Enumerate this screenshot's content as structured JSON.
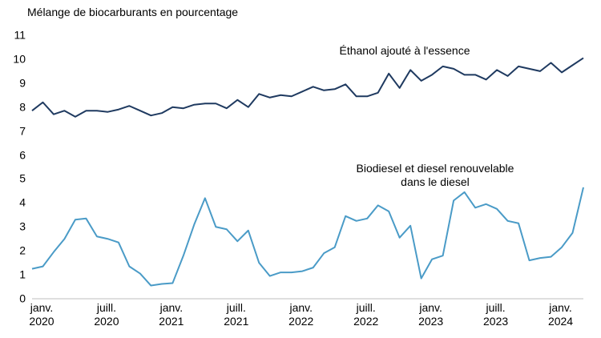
{
  "chart_data": {
    "type": "line",
    "title": "Mélange de biocarburants en pourcentage",
    "categories": [
      "janv.\n2020",
      null,
      null,
      null,
      null,
      null,
      "juill.\n2020",
      null,
      null,
      null,
      null,
      null,
      "janv.\n2021",
      null,
      null,
      null,
      null,
      null,
      "juill.\n2021",
      null,
      null,
      null,
      null,
      null,
      "janv.\n2022",
      null,
      null,
      null,
      null,
      null,
      "juill.\n2022",
      null,
      null,
      null,
      null,
      null,
      "janv.\n2023",
      null,
      null,
      null,
      null,
      null,
      "juill.\n2023",
      null,
      null,
      null,
      null,
      null,
      "janv.\n2024",
      null,
      null,
      null
    ],
    "series": [
      {
        "name": "Éthanol ajouté à l'essence",
        "color": "#1f3a60",
        "values": [
          7.85,
          8.2,
          7.7,
          7.85,
          7.6,
          7.85,
          7.85,
          7.8,
          7.9,
          8.05,
          7.85,
          7.65,
          7.75,
          8.0,
          7.95,
          8.1,
          8.15,
          8.15,
          7.95,
          8.3,
          8.0,
          8.55,
          8.4,
          8.5,
          8.45,
          8.65,
          8.85,
          8.7,
          8.75,
          8.95,
          8.45,
          8.45,
          8.6,
          9.4,
          8.8,
          9.55,
          9.1,
          9.35,
          9.7,
          9.6,
          9.35,
          9.35,
          9.15,
          9.55,
          9.3,
          9.7,
          9.6,
          9.5,
          9.85,
          9.45,
          9.75,
          10.05
        ]
      },
      {
        "name": "Biodiesel et diesel renouvelable\ndans le diesel",
        "color": "#4a9bc7",
        "values": [
          1.25,
          1.35,
          1.95,
          2.5,
          3.3,
          3.35,
          2.6,
          2.5,
          2.35,
          1.35,
          1.05,
          0.55,
          0.62,
          0.65,
          1.8,
          3.1,
          4.2,
          3.0,
          2.9,
          2.4,
          2.85,
          1.5,
          0.95,
          1.1,
          1.1,
          1.15,
          1.3,
          1.9,
          2.15,
          3.45,
          3.25,
          3.35,
          3.9,
          3.65,
          2.55,
          3.05,
          0.85,
          1.65,
          1.8,
          4.1,
          4.45,
          3.8,
          3.95,
          3.75,
          3.25,
          3.15,
          1.6,
          1.7,
          1.75,
          2.15,
          2.75,
          4.65
        ]
      }
    ],
    "ylim": [
      0,
      11
    ],
    "yticks": [
      0,
      1,
      2,
      3,
      4,
      5,
      6,
      7,
      8,
      9,
      10,
      11
    ],
    "grid": false
  }
}
